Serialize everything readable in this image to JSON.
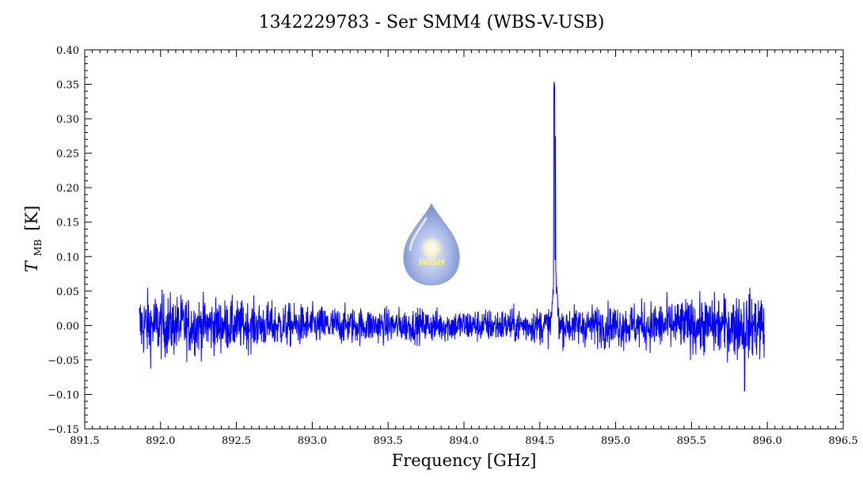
{
  "chart_data": {
    "type": "line",
    "title": "1342229783 - Ser SMM4 (WBS-V-USB)",
    "xlabel": "Frequency [GHz]",
    "ylabel_main": "T",
    "ylabel_sub": "MB",
    "ylabel_unit": "[K]",
    "xlim": [
      891.5,
      896.5
    ],
    "ylim": [
      -0.15,
      0.4
    ],
    "x_ticks": [
      "891.5",
      "892.0",
      "892.5",
      "893.0",
      "893.5",
      "894.0",
      "894.5",
      "895.0",
      "895.5",
      "896.0",
      "896.5"
    ],
    "y_ticks": [
      "−0.15",
      "−0.10",
      "−0.05",
      "0.00",
      "0.05",
      "0.10",
      "0.15",
      "0.20",
      "0.25",
      "0.30",
      "0.35",
      "0.40"
    ],
    "line_color": "#0000ff",
    "grid": false,
    "series": [
      {
        "x_range": [
          891.86,
          895.98
        ],
        "baseline": 0.0,
        "noise_rms_ends": 0.025,
        "noise_rms_center": 0.012,
        "spike": {
          "x": 894.6,
          "peak": 0.36,
          "second_peak": 0.28,
          "wing": 0.08
        },
        "dip": {
          "x": 895.85,
          "min": -0.095
        }
      }
    ]
  },
  "logo": {
    "text": "WISH"
  }
}
